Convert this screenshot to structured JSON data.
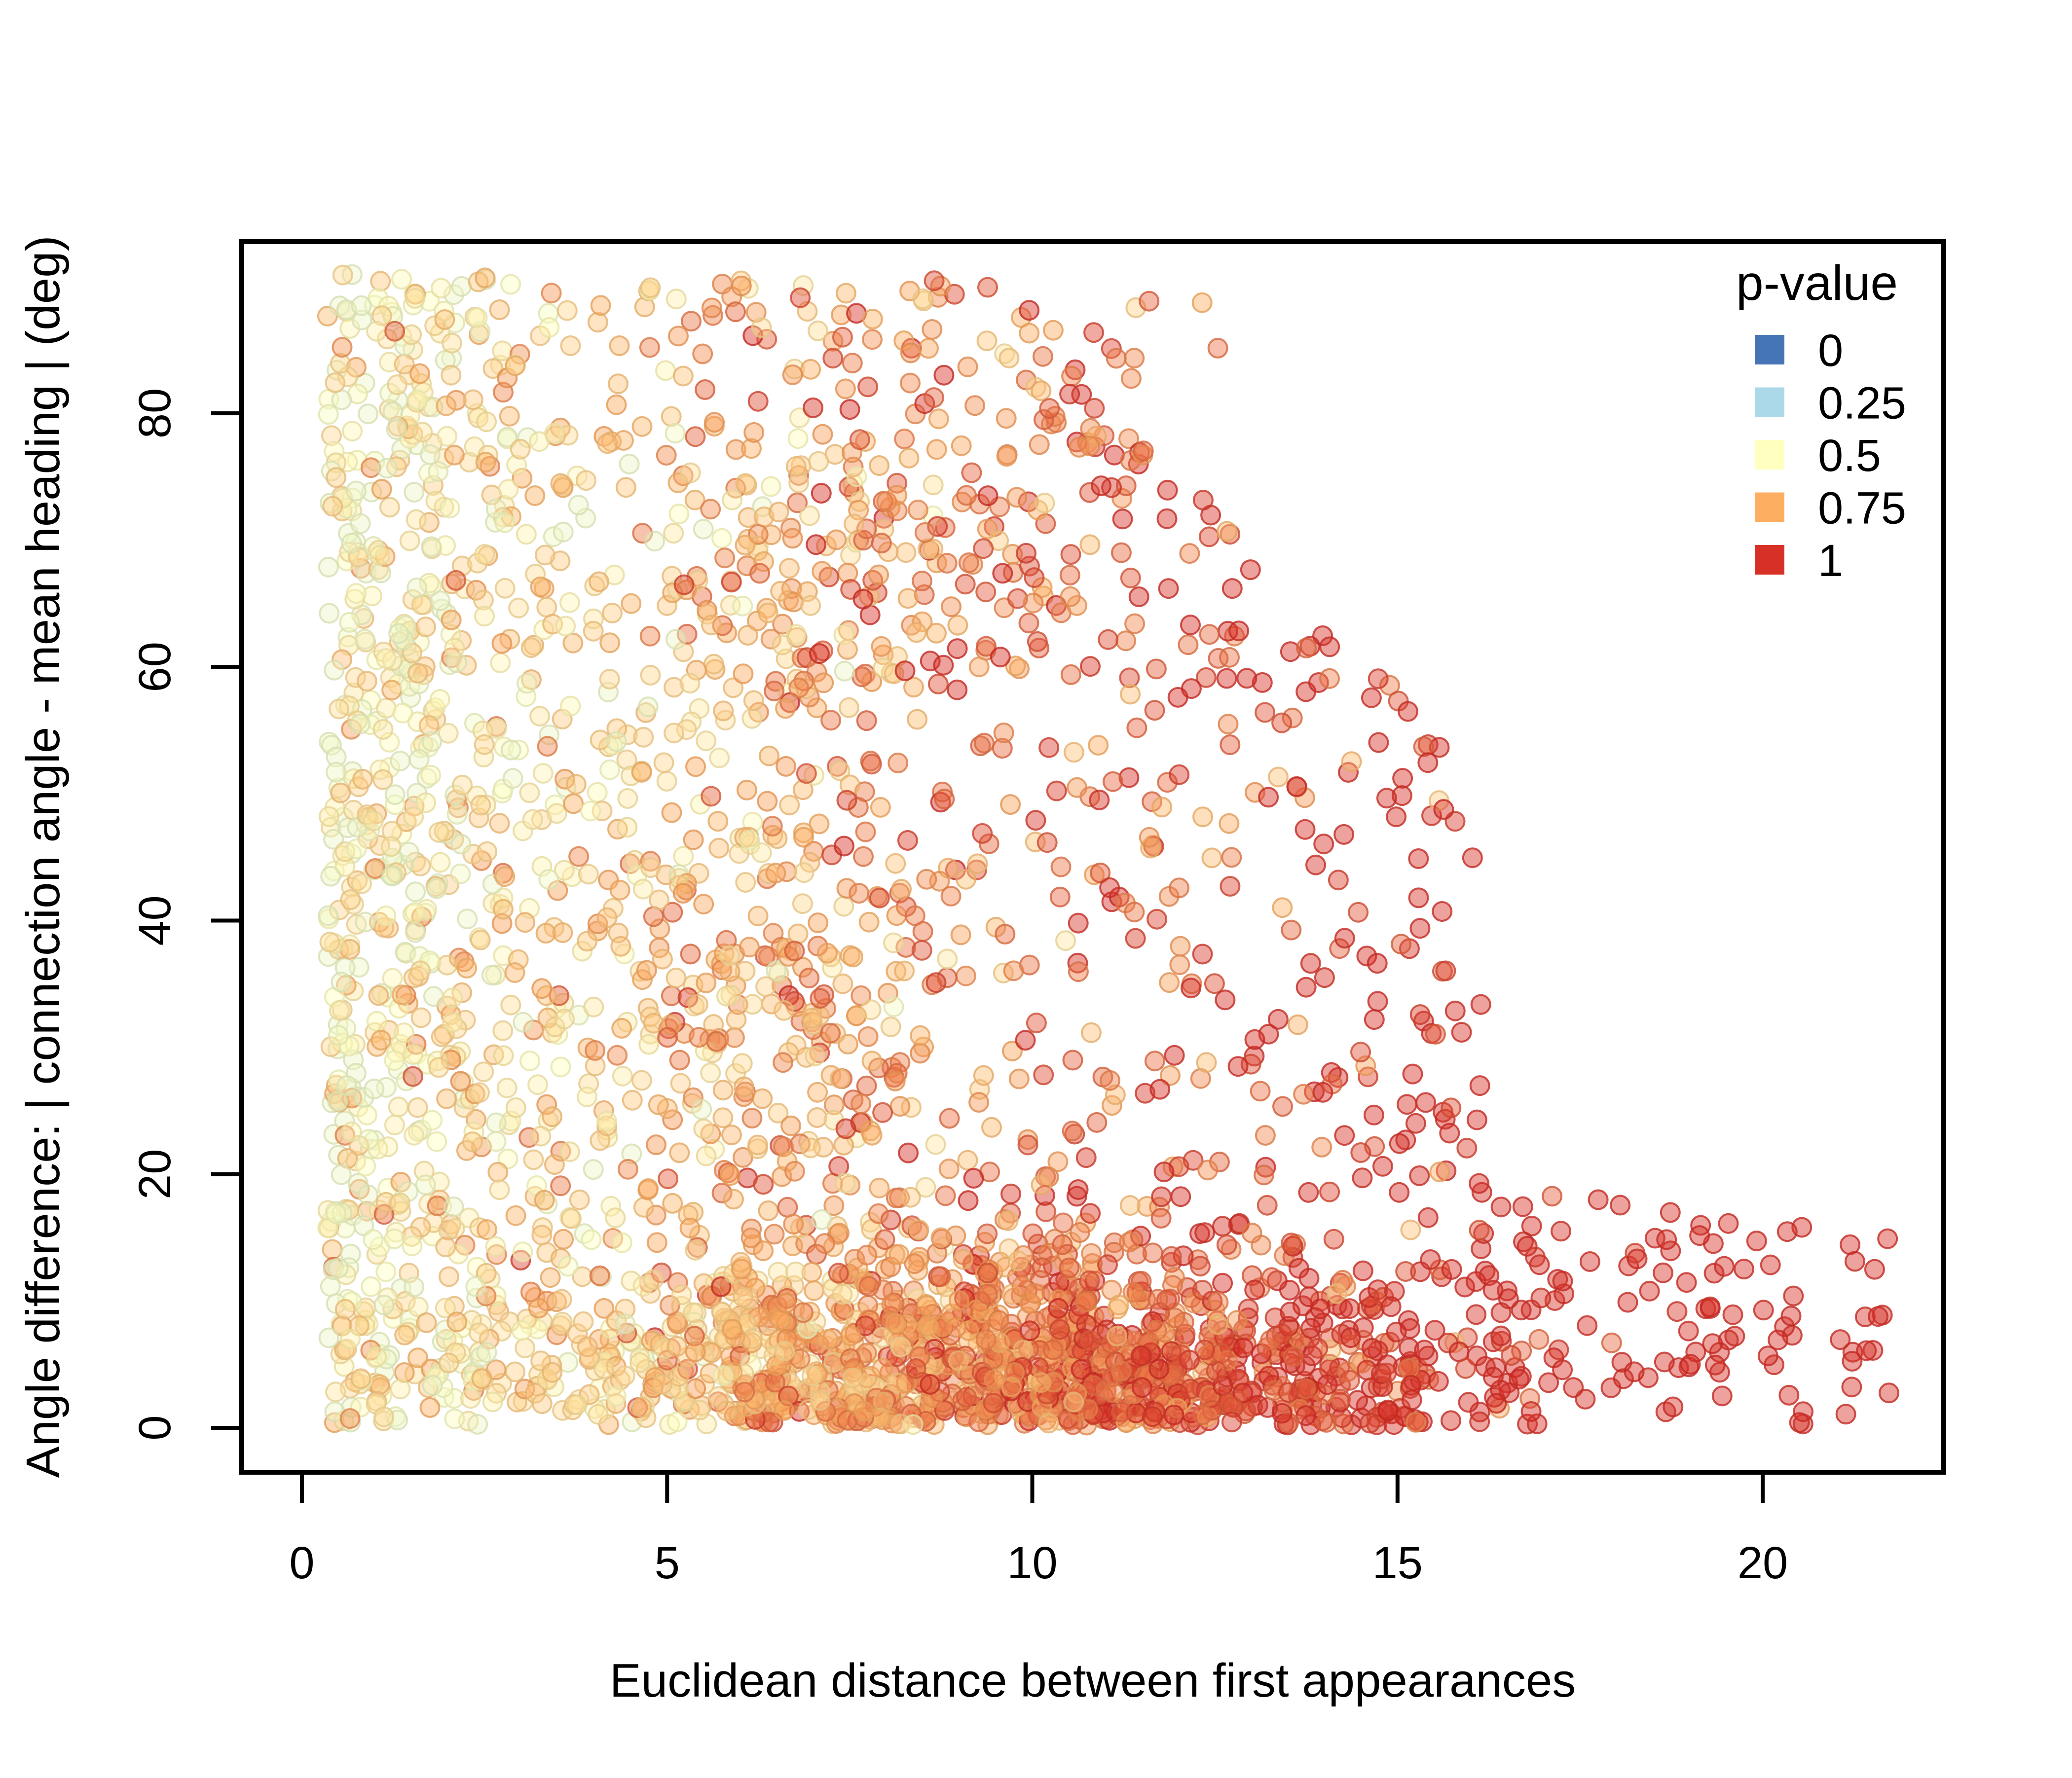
{
  "chart_data": {
    "type": "scatter",
    "title": "",
    "xlabel": "Euclidean distance between first appearances",
    "ylabel": "Angle difference: | connection angle - mean heading | (deg)",
    "x_ticks": [
      0,
      5,
      10,
      15,
      20
    ],
    "y_ticks": [
      0,
      20,
      40,
      60,
      80
    ],
    "xlim": [
      -0.8,
      22.4
    ],
    "ylim": [
      -3.5,
      93.5
    ],
    "grid": false,
    "legend": {
      "title": "p-value",
      "position": "top-right-inside",
      "entries": [
        {
          "label": "0",
          "color": "#4575b4"
        },
        {
          "label": "0.25",
          "color": "#abd9e9"
        },
        {
          "label": "0.5",
          "color": "#ffffbf"
        },
        {
          "label": "0.75",
          "color": "#fdae61"
        },
        {
          "label": "1",
          "color": "#d73027"
        }
      ]
    },
    "color_scale": {
      "name": "RdYlBu-reversed",
      "stops": [
        {
          "p": 0.0,
          "color": "#4575b4"
        },
        {
          "p": 0.25,
          "color": "#abd9e9"
        },
        {
          "p": 0.5,
          "color": "#ffffbf"
        },
        {
          "p": 0.75,
          "color": "#fdae61"
        },
        {
          "p": 1.0,
          "color": "#d73027"
        }
      ]
    },
    "point_style": {
      "radius_px": 19,
      "fill_opacity": 0.45,
      "stroke_opacity": 0.8,
      "stroke_width_px": 4,
      "stroke_darken": 0.9
    },
    "n_points": 3510,
    "seed": 42,
    "color_model": {
      "base": 0.5,
      "per_x": 0.035,
      "noise_sd": 0.12,
      "min": 0.45,
      "max": 1.0
    },
    "clusters": [
      {
        "name": "left-column",
        "count": 700,
        "x": {
          "dist": "absnormal",
          "offset": 0.35,
          "sd": 1.5,
          "max": 5.5
        },
        "y": {
          "dist": "uniform",
          "min": 0.4,
          "max": 91
        }
      },
      {
        "name": "mid-cloud",
        "count": 600,
        "x": {
          "dist": "normal",
          "mean": 6.2,
          "sd": 2.2,
          "min": 0.5,
          "max": 12
        },
        "y": {
          "dist": "normal",
          "mean": 35,
          "sd": 16,
          "min": 3,
          "max": 75
        }
      },
      {
        "name": "upper-band",
        "count": 380,
        "x": {
          "dist": "normal",
          "mean": 7.5,
          "sd": 2.6,
          "min": 0.6,
          "max": 12.8
        },
        "y": {
          "dist": "uniform",
          "min": 58,
          "max": 90.5
        }
      },
      {
        "name": "right-wedge",
        "count": 220,
        "x": {
          "dist": "uniform",
          "min": 9.5,
          "max": 16.2
        },
        "y": {
          "dist": "uniform_dep",
          "base": 88,
          "slope": 5.2,
          "ref": 9.5,
          "min": 18
        }
      },
      {
        "name": "bottom-band",
        "count": 1500,
        "x": {
          "dist": "normal",
          "mean": 9.8,
          "sd": 3.6,
          "min": 0.4,
          "max": 17.5
        },
        "y": {
          "dist": "absnormal",
          "offset": 0.2,
          "sd": 7.5,
          "max": 21
        }
      },
      {
        "name": "right-tail",
        "count": 110,
        "x": {
          "dist": "uniform",
          "min": 15.8,
          "max": 21.9
        },
        "y": {
          "dist": "uniform_dep",
          "base": 19,
          "slope": 0.5,
          "ref": 16,
          "min": 0.3
        }
      }
    ]
  }
}
